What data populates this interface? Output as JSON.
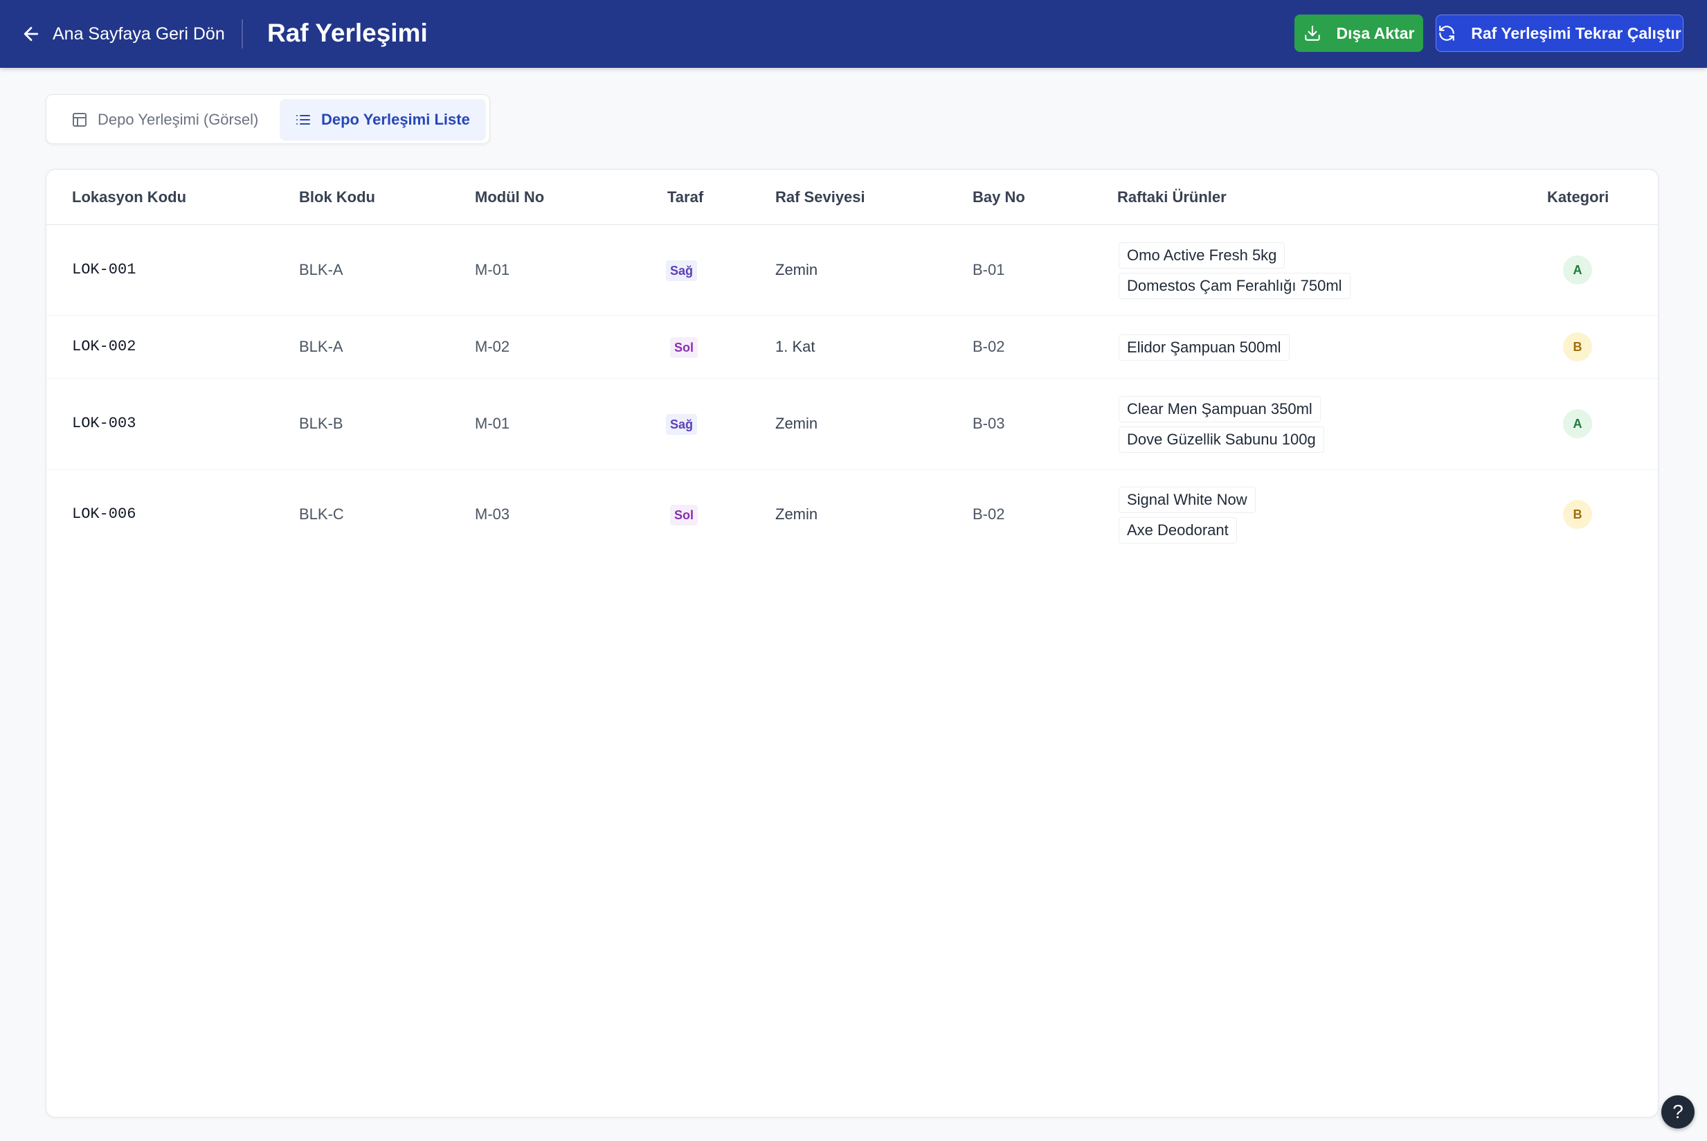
{
  "header": {
    "back_label": "Ana Sayfaya Geri Dön",
    "title": "Raf Yerleşimi",
    "export_label": "Dışa Aktar",
    "rerun_label": "Raf Yerleşimi Tekrar Çalıştır",
    "background_color": "#22378a",
    "export_color": "#2aa14a",
    "rerun_color": "#2747d6"
  },
  "tabs": [
    {
      "label": "Depo Yerleşimi (Görsel)",
      "icon": "layout-icon",
      "active": false
    },
    {
      "label": "Depo Yerleşimi Liste",
      "icon": "list-icon",
      "active": true
    }
  ],
  "table": {
    "columns": [
      "Lokasyon Kodu",
      "Blok Kodu",
      "Modül No",
      "Taraf",
      "Raf Seviyesi",
      "Bay No",
      "Raftaki Ürünler",
      "Kategori"
    ],
    "rows": [
      {
        "location": "LOK-001",
        "block": "BLK-A",
        "module": "M-01",
        "side": "Sağ",
        "level": "Zemin",
        "bay": "B-01",
        "products": [
          "Omo Active Fresh 5kg",
          "Domestos Çam Ferahlığı 750ml"
        ],
        "category": "A"
      },
      {
        "location": "LOK-002",
        "block": "BLK-A",
        "module": "M-02",
        "side": "Sol",
        "level": "1. Kat",
        "bay": "B-02",
        "products": [
          "Elidor Şampuan 500ml"
        ],
        "category": "B"
      },
      {
        "location": "LOK-003",
        "block": "BLK-B",
        "module": "M-01",
        "side": "Sağ",
        "level": "Zemin",
        "bay": "B-03",
        "products": [
          "Clear Men Şampuan 350ml",
          "Dove Güzellik Sabunu 100g"
        ],
        "category": "A"
      },
      {
        "location": "LOK-006",
        "block": "BLK-C",
        "module": "M-03",
        "side": "Sol",
        "level": "Zemin",
        "bay": "B-02",
        "products": [
          "Signal White Now",
          "Axe Deodorant"
        ],
        "category": "B"
      }
    ]
  },
  "help": {
    "label": "?"
  }
}
